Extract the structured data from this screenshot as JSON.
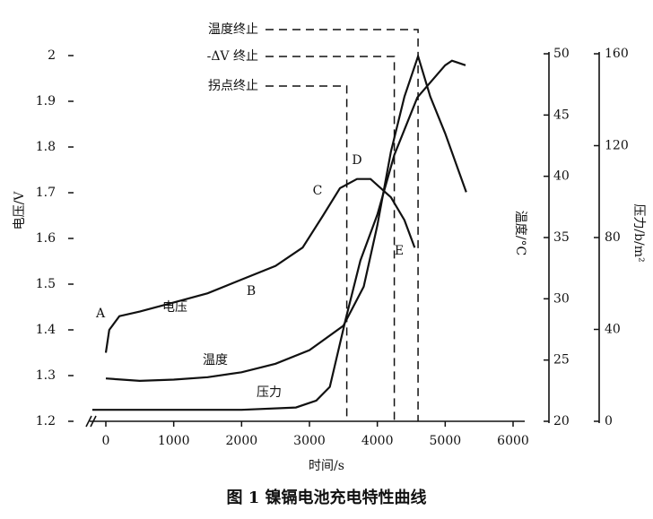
{
  "chart_data": {
    "type": "line",
    "title": "图 1 镍镉电池充电特性曲线",
    "xlabel": "时间/s",
    "ylabel": "电压/V",
    "y2label": "温度/°C",
    "y3label": "压力/b/m²",
    "xlim": [
      -240,
      6000
    ],
    "xticks": [
      0,
      1000,
      2000,
      3000,
      4000,
      5000,
      6000
    ],
    "ylim": [
      1.2,
      2.0
    ],
    "yticks": [
      1.2,
      1.3,
      1.4,
      1.5,
      1.6,
      1.7,
      1.8,
      1.9,
      2.0
    ],
    "y2lim": [
      20,
      50
    ],
    "y2ticks": [
      20,
      25,
      30,
      35,
      40,
      45,
      50
    ],
    "y3lim": [
      0,
      160
    ],
    "y3ticks": [
      0,
      40,
      80,
      120,
      160
    ],
    "series": [
      {
        "name": "电压",
        "color": "#111111",
        "x": [
          0,
          50,
          200,
          500,
          1000,
          1500,
          2000,
          2500,
          2900,
          3200,
          3450,
          3700,
          3900,
          4200,
          4400,
          4550
        ],
        "values": [
          1.35,
          1.4,
          1.43,
          1.44,
          1.46,
          1.48,
          1.51,
          1.54,
          1.58,
          1.65,
          1.71,
          1.73,
          1.73,
          1.69,
          1.64,
          1.58
        ]
      },
      {
        "name": "温度",
        "color": "#111111",
        "axis": "y2",
        "x": [
          0,
          500,
          1000,
          1500,
          2000,
          2500,
          3000,
          3500,
          3800,
          4000,
          4200,
          4400,
          4600,
          4780,
          5000,
          5310
        ],
        "values": [
          23.5,
          23.3,
          23.4,
          23.6,
          24.0,
          24.7,
          25.8,
          27.8,
          31,
          36,
          42,
          46.5,
          49.8,
          46.5,
          43.5,
          38.7
        ]
      },
      {
        "name": "压力",
        "color": "#111111",
        "axis": "y3",
        "x": [
          -200,
          0,
          1000,
          2000,
          2800,
          3100,
          3300,
          3530,
          3750,
          4000,
          4250,
          4590,
          5000,
          5100,
          5300
        ],
        "values": [
          5,
          5,
          5,
          5,
          6,
          9,
          15,
          44,
          70,
          90,
          116,
          141,
          155,
          157,
          155
        ]
      }
    ],
    "point_labels": [
      "A",
      "B",
      "C",
      "D",
      "E"
    ],
    "stop_markers": [
      {
        "label": "温度终止",
        "x": 4600
      },
      {
        "label": "-ΔV 终止",
        "x": 4250
      },
      {
        "label": "拐点终止",
        "x": 3550
      }
    ]
  }
}
